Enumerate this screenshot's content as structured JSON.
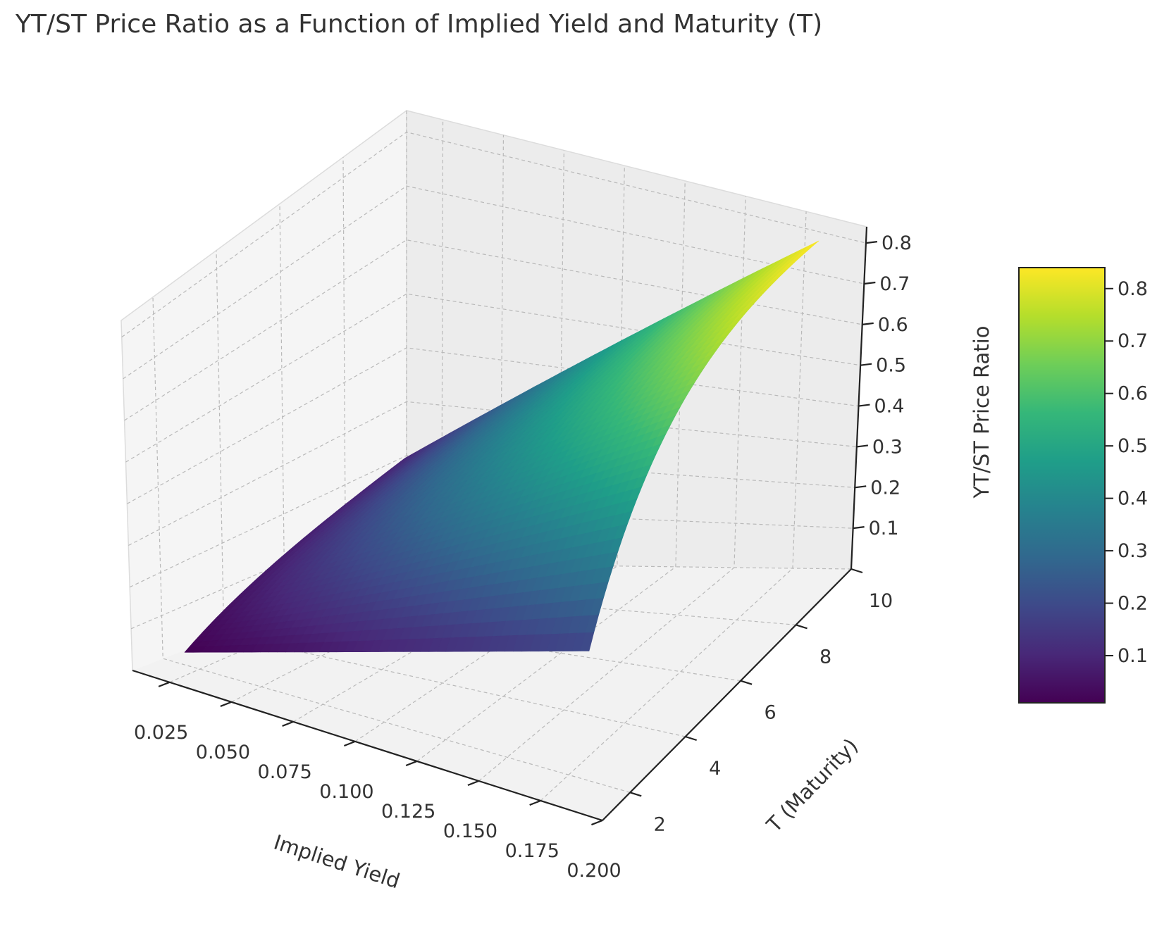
{
  "chart_data": {
    "type": "surface3d",
    "title": "YT/ST Price Ratio as a Function of Implied Yield and Maturity (T)",
    "xlabel": "Implied Yield",
    "ylabel": "T (Maturity)",
    "zlabel": "YT/ST Price Ratio",
    "xlim": [
      0.01,
      0.2
    ],
    "ylim": [
      1,
      10
    ],
    "zlim": [
      0.0,
      0.84
    ],
    "x_ticks": [
      "0.025",
      "0.050",
      "0.075",
      "0.100",
      "0.125",
      "0.150",
      "0.175",
      "0.200"
    ],
    "y_ticks": [
      "2",
      "4",
      "6",
      "8",
      "10"
    ],
    "z_ticks": [
      "0.1",
      "0.2",
      "0.3",
      "0.4",
      "0.5",
      "0.6",
      "0.7",
      "0.8"
    ],
    "colorbar_ticks": [
      "0.1",
      "0.2",
      "0.3",
      "0.4",
      "0.5",
      "0.6",
      "0.7",
      "0.8"
    ],
    "colorbar_range": [
      0.01,
      0.84
    ],
    "colormap": [
      "#440154",
      "#482878",
      "#3e4989",
      "#31688e",
      "#26828e",
      "#1f9e89",
      "#35b779",
      "#6ece58",
      "#b5de2b",
      "#fde725"
    ],
    "corner_values": {
      "x_min_T_min": 0.01,
      "x_max_T_min": 0.18,
      "x_min_T_max": 0.095,
      "x_max_T_max": 0.84
    },
    "grid": true
  }
}
